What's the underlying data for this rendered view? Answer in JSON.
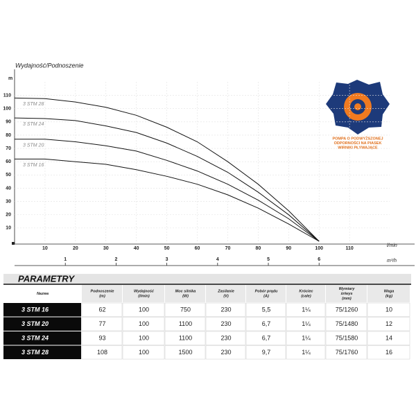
{
  "chart_data": {
    "type": "line",
    "title": "Wydajność/Podnoszenie",
    "y_unit": "m",
    "x_unit": "l/min",
    "x2_unit": "m³/h",
    "x": [
      0,
      10,
      20,
      30,
      40,
      50,
      60,
      70,
      80,
      90,
      100
    ],
    "series": [
      {
        "name": "3 STM 28",
        "color": "#111111",
        "values": [
          108,
          107.5,
          105,
          101,
          95,
          86,
          75,
          60,
          43,
          23,
          0
        ]
      },
      {
        "name": "3 STM 24",
        "color": "#111111",
        "values": [
          93,
          92.5,
          91,
          87,
          82,
          74,
          64,
          52,
          37,
          20,
          0
        ]
      },
      {
        "name": "3 STM 20",
        "color": "#111111",
        "values": [
          77,
          77,
          75,
          72,
          68,
          61,
          53,
          43,
          31,
          17,
          0
        ]
      },
      {
        "name": "3 STM 16",
        "color": "#111111",
        "values": [
          62,
          62,
          60,
          58,
          54,
          49,
          43,
          35,
          25,
          13,
          0
        ]
      }
    ],
    "xlim": [
      0,
      130
    ],
    "xticks": [
      10,
      20,
      30,
      40,
      50,
      60,
      70,
      80,
      90,
      100,
      110
    ],
    "x2lim": [
      0,
      7.8
    ],
    "x2ticks": [
      1,
      2,
      3,
      4,
      5,
      6
    ],
    "ylim": [
      0,
      115
    ],
    "yticks": [
      10,
      20,
      30,
      40,
      50,
      60,
      70,
      80,
      90,
      100,
      110
    ],
    "grid": true
  },
  "logo": {
    "lines": [
      "POMPA O PODWYŻSZONEJ",
      "ODPORNOŚCI NA PIASEK",
      "WIRNIKI PŁYWAJĄCE"
    ]
  },
  "table": {
    "title": "PARAMETRY",
    "columns": [
      [
        "Nazwa"
      ],
      [
        "Podnoszenie",
        "(m)"
      ],
      [
        "Wydajność",
        "(l/min)"
      ],
      [
        "Moc silnika",
        "(W)"
      ],
      [
        "Zasilanie",
        "(V)"
      ],
      [
        "Pobór prądu",
        "(A)"
      ],
      [
        "Króciec",
        "(cale)"
      ],
      [
        "Wymiary",
        "śr/wys",
        "(mm)"
      ],
      [
        "Waga",
        "(kg)"
      ]
    ],
    "rows": [
      [
        "3 STM 16",
        "62",
        "100",
        "750",
        "230",
        "5,5",
        "1¼",
        "75/1260",
        "10"
      ],
      [
        "3 STM 20",
        "77",
        "100",
        "1100",
        "230",
        "6,7",
        "1¼",
        "75/1480",
        "12"
      ],
      [
        "3 STM 24",
        "93",
        "100",
        "1100",
        "230",
        "6,7",
        "1¼",
        "75/1580",
        "14"
      ],
      [
        "3 STM 28",
        "108",
        "100",
        "1500",
        "230",
        "9,7",
        "1¼",
        "75/1760",
        "16"
      ]
    ]
  }
}
